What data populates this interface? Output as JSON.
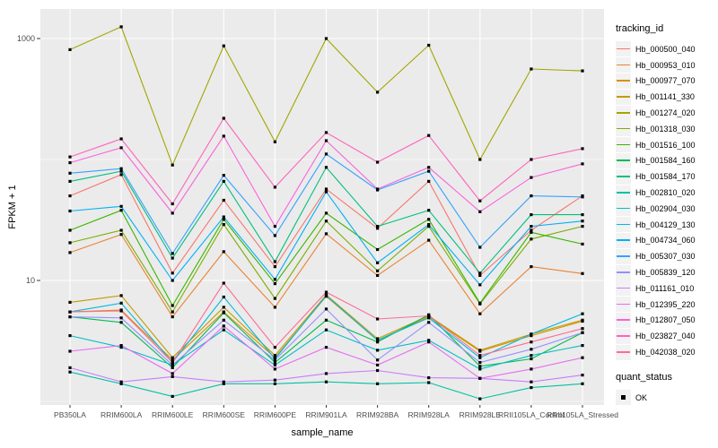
{
  "figure": {
    "y_axis": {
      "title": "FPKM + 1"
    },
    "x_axis": {
      "title": "sample_name"
    },
    "legend": {
      "tracking_title": "tracking_id",
      "quant_title": "quant_status",
      "quant_items": [
        {
          "label": "OK"
        }
      ]
    }
  },
  "chart_data": {
    "type": "line",
    "xlabel": "sample_name",
    "ylabel": "FPKM + 1",
    "y_scale": "log10",
    "ylim": [
      1,
      1400
    ],
    "y_tick_labels": [
      {
        "label": "1000",
        "value": 1000
      },
      {
        "label": "10",
        "value": 10
      }
    ],
    "y_breaks_major": [
      10,
      1000
    ],
    "y_breaks_minor": [
      1,
      100
    ],
    "grid": "on",
    "legend_position": "right",
    "panel_background": "#EBEBEB",
    "grid_color": "#FFFFFF",
    "point_style": "small black square (quant_status OK)",
    "categories": [
      "PB350LA",
      "RRIM600LA",
      "RRIM600LE",
      "RRIM600SE",
      "RRIM600PE",
      "RRIM901LA",
      "RRIM928BA",
      "RRIM928LA",
      "RRIM928LE",
      "RRII105LA_Control",
      "RRII105LA_Stressed"
    ],
    "series": [
      {
        "name": "Hb_000500_040",
        "color": "#F8766D",
        "values": [
          50,
          75,
          11.5,
          46,
          13,
          57,
          27,
          66,
          11,
          26,
          50
        ]
      },
      {
        "name": "Hb_000953_010",
        "color": "#EA8331",
        "values": [
          17,
          24,
          5.0,
          17.3,
          6.0,
          24.3,
          11,
          21.5,
          5.3,
          13,
          11.4
        ]
      },
      {
        "name": "Hb_000977_070",
        "color": "#D89000",
        "values": [
          5.5,
          5.7,
          2.2,
          5.5,
          2.3,
          7.4,
          3.2,
          5.0,
          2.6,
          3.5,
          4.6
        ]
      },
      {
        "name": "Hb_001141_330",
        "color": "#C09B00",
        "values": [
          6.6,
          7.5,
          2.3,
          6.0,
          2.4,
          7.6,
          3.3,
          5.1,
          2.65,
          3.6,
          4.7
        ]
      },
      {
        "name": "Hb_001274_020",
        "color": "#A3A500",
        "values": [
          810,
          1250,
          90,
          870,
          140,
          1000,
          360,
          880,
          100,
          560,
          540
        ]
      },
      {
        "name": "Hb_001318_030",
        "color": "#7CAE00",
        "values": [
          20.5,
          26,
          5.5,
          29,
          7.1,
          31,
          12,
          28,
          6.4,
          22,
          28
        ]
      },
      {
        "name": "Hb_001516_100",
        "color": "#39B600",
        "values": [
          26,
          38,
          6.2,
          32,
          9.4,
          36,
          18,
          32,
          6.5,
          25,
          20
        ]
      },
      {
        "name": "Hb_001584_160",
        "color": "#00BB4E",
        "values": [
          5.0,
          4.5,
          1.9,
          5.4,
          2.1,
          4.7,
          3.1,
          5.2,
          1.95,
          2.25,
          3.7
        ]
      },
      {
        "name": "Hb_001584_170",
        "color": "#00BF7D",
        "values": [
          66,
          80,
          15.3,
          66,
          14.3,
          86,
          28,
          38,
          11.5,
          35,
          35
        ]
      },
      {
        "name": "Hb_002810_020",
        "color": "#00C1A3",
        "values": [
          1.75,
          1.4,
          1.1,
          1.4,
          1.4,
          1.45,
          1.4,
          1.43,
          1.05,
          1.3,
          1.4
        ]
      },
      {
        "name": "Hb_002904_030",
        "color": "#00BFC4",
        "values": [
          3.5,
          2.8,
          2.0,
          3.9,
          2.0,
          3.9,
          2.65,
          3.2,
          1.85,
          2.4,
          2.9
        ]
      },
      {
        "name": "Hb_004129_130",
        "color": "#00BAE0",
        "values": [
          5.5,
          6.5,
          2.1,
          7.3,
          2.25,
          7.5,
          3.2,
          4.9,
          2.3,
          3.6,
          5.3
        ]
      },
      {
        "name": "Hb_004734_060",
        "color": "#00B0F6",
        "values": [
          37.5,
          41,
          10,
          33.5,
          10.2,
          54,
          14,
          29,
          9.2,
          28,
          31
        ]
      },
      {
        "name": "Hb_005307_030",
        "color": "#35A2FF",
        "values": [
          77,
          84,
          16.7,
          74,
          23.5,
          111,
          56,
          80,
          18.8,
          50,
          49
        ]
      },
      {
        "name": "Hb_005839_120",
        "color": "#9590FF",
        "values": [
          5.0,
          4.9,
          2.0,
          4.7,
          2.2,
          5.8,
          2.2,
          4.5,
          2.1,
          2.7,
          3.7
        ]
      },
      {
        "name": "Hb_011161_010",
        "color": "#C77CFF",
        "values": [
          1.9,
          1.45,
          1.6,
          1.45,
          1.5,
          1.7,
          1.8,
          1.57,
          1.55,
          1.45,
          1.65
        ]
      },
      {
        "name": "Hb_012395_220",
        "color": "#E76BF3",
        "values": [
          2.6,
          2.9,
          1.7,
          4.2,
          1.85,
          2.8,
          2.0,
          3.1,
          1.55,
          1.85,
          2.3
        ]
      },
      {
        "name": "Hb_012807_050",
        "color": "#FA62DB",
        "values": [
          94,
          125,
          36,
          156,
          28,
          143,
          57,
          86,
          37,
          71,
          92
        ]
      },
      {
        "name": "Hb_023827_040",
        "color": "#FF62BC",
        "values": [
          105,
          148,
          43,
          219,
          59,
          167,
          95,
          158,
          45.5,
          100,
          123
        ]
      },
      {
        "name": "Hb_042038_020",
        "color": "#FF6A98",
        "values": [
          5.5,
          5.6,
          2.1,
          9.5,
          2.8,
          8.0,
          4.8,
          5.1,
          2.4,
          3.1,
          4.0
        ]
      }
    ],
    "quant_status": "OK"
  }
}
